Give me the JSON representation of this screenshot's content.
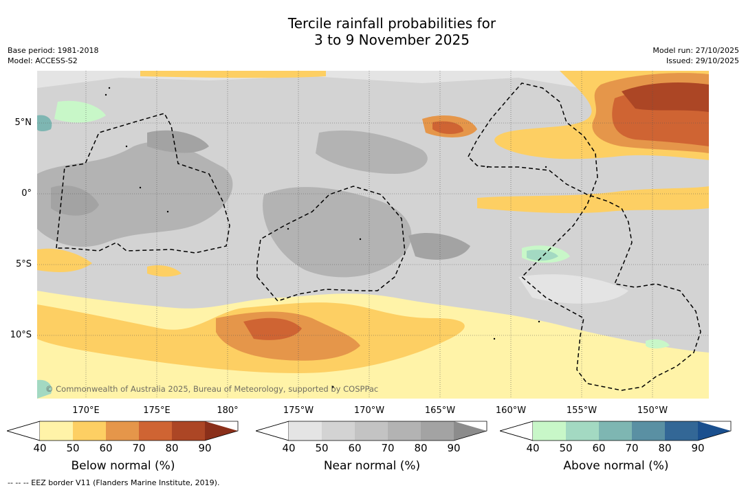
{
  "title": {
    "line1": "Tercile rainfall probabilities for",
    "line2": "3 to 9 November 2025"
  },
  "meta": {
    "base_period": "Base period: 1981-2018",
    "model": "Model: ACCESS-S2",
    "model_run": "Model run: 27/10/2025",
    "issued": "Issued: 29/10/2025"
  },
  "map": {
    "lat_labels": [
      "5°N",
      "0°",
      "5°S",
      "10°S"
    ],
    "lon_labels": [
      "170°E",
      "175°E",
      "180°",
      "175°W",
      "170°W",
      "165°W",
      "160°W",
      "155°W",
      "150°W"
    ],
    "copyright": "© Commonwealth of Australia 2025, Bureau of Meteorology, supported by COSPPac"
  },
  "colorbars": {
    "ticks": [
      "40",
      "50",
      "60",
      "70",
      "80",
      "90"
    ],
    "below": {
      "title": "Below normal (%)",
      "colors": [
        "#fff3a8",
        "#fdcf63",
        "#e5964a",
        "#cf6433",
        "#ac4625",
        "#8a2f1a"
      ]
    },
    "near": {
      "title": "Near normal (%)",
      "colors": [
        "#e4e4e4",
        "#d3d3d3",
        "#c3c3c3",
        "#b3b3b3",
        "#a3a3a3",
        "#8c8c8c"
      ]
    },
    "above": {
      "title": "Above normal (%)",
      "colors": [
        "#c8f7c8",
        "#a3d9c2",
        "#7eb6b2",
        "#5a90a3",
        "#336796",
        "#1a4f8e"
      ]
    }
  },
  "footnote": "-- -- -- EEZ border V11 (Flanders Marine Institute, 2019)."
}
